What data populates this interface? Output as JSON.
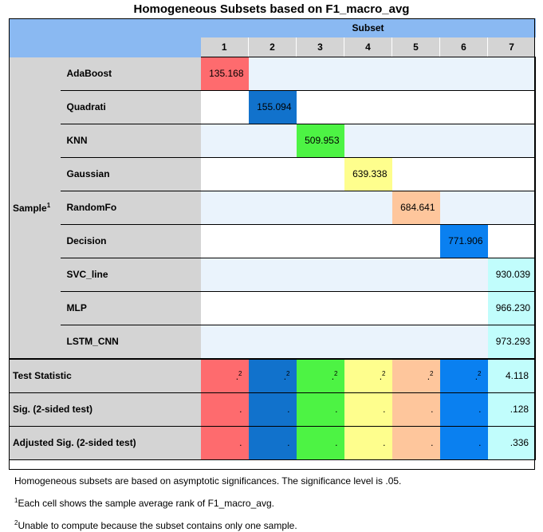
{
  "title": "Homogeneous Subsets based on F1_macro_avg",
  "subset_header": "Subset",
  "columns": [
    "1",
    "2",
    "3",
    "4",
    "5",
    "6",
    "7"
  ],
  "column_colors": [
    "#fe6b6e",
    "#1172cc",
    "#4df344",
    "#fefe8d",
    "#fec69c",
    "#0a80f0",
    "#c1fdfc"
  ],
  "group_label": "Sample",
  "group_label_sup": "1",
  "samples": [
    {
      "name": "AdaBoost",
      "value": "135.168",
      "col": 0
    },
    {
      "name": "Quadrati",
      "value": "155.094",
      "col": 1
    },
    {
      "name": "KNN",
      "value": "509.953",
      "col": 2
    },
    {
      "name": "Gaussian",
      "value": "639.338",
      "col": 3
    },
    {
      "name": "RandomFo",
      "value": "684.641",
      "col": 4
    },
    {
      "name": "Decision",
      "value": "771.906",
      "col": 5
    },
    {
      "name": "SVC_line",
      "value": "930.039",
      "col": 6
    },
    {
      "name": "MLP",
      "value": "966.230",
      "col": 6
    },
    {
      "name": "LSTM_CNN",
      "value": "973.293",
      "col": 6
    }
  ],
  "stats": [
    {
      "label": "Test Statistic",
      "values": [
        ".",
        ".",
        ".",
        ".",
        ".",
        ".",
        "4.118"
      ],
      "sup": [
        "2",
        "2",
        "2",
        "2",
        "2",
        "2",
        ""
      ]
    },
    {
      "label": "Sig. (2-sided test)",
      "values": [
        ".",
        ".",
        ".",
        ".",
        ".",
        ".",
        ".128"
      ],
      "sup": [
        "",
        "",
        "",
        "",
        "",
        "",
        ""
      ]
    },
    {
      "label": "Adjusted Sig. (2-sided test)",
      "values": [
        ".",
        ".",
        ".",
        ".",
        ".",
        ".",
        ".336"
      ],
      "sup": [
        "",
        "",
        "",
        "",
        "",
        "",
        ""
      ]
    }
  ],
  "footnotes": {
    "main": "Homogeneous subsets are based on asymptotic significances.  The significance level is .05.",
    "fn1_sup": "1",
    "fn1": "Each cell shows the sample average rank of F1_macro_avg.",
    "fn2_sup": "2",
    "fn2": "Unable to compute because the subset contains only one sample."
  }
}
